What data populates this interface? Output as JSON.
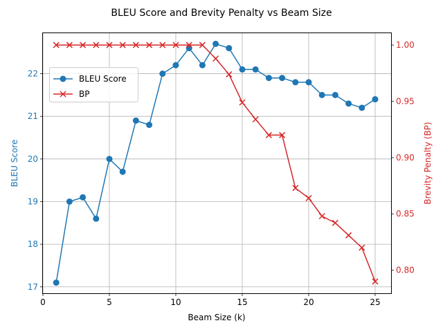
{
  "chart_data": {
    "type": "line",
    "title": "BLEU Score and Brevity Penalty vs Beam Size",
    "xlabel": "Beam Size (k)",
    "ylabel_left": "BLEU Score",
    "ylabel_right": "Brevity Penalty (BP)",
    "xlim": [
      0,
      26.2
    ],
    "ylim_left": [
      16.85,
      22.95
    ],
    "ylim_right": [
      0.7795,
      1.0105
    ],
    "x_ticks": [
      0,
      5,
      10,
      15,
      20,
      25
    ],
    "y_ticks_left": [
      17,
      18,
      19,
      20,
      21,
      22
    ],
    "y_ticks_right": [
      0.8,
      0.85,
      0.9,
      0.95,
      1.0
    ],
    "x_tick_labels": [
      "0",
      "5",
      "10",
      "15",
      "20",
      "25"
    ],
    "y_tick_labels_left": [
      "17",
      "18",
      "19",
      "20",
      "21",
      "22"
    ],
    "y_tick_labels_right": [
      "0.80",
      "0.85",
      "0.90",
      "0.95",
      "1.00"
    ],
    "grid": true,
    "legend_position": "upper-left",
    "x": [
      1,
      2,
      3,
      4,
      5,
      6,
      7,
      8,
      9,
      10,
      11,
      12,
      13,
      14,
      15,
      16,
      17,
      18,
      19,
      20,
      21,
      22,
      23,
      24,
      25
    ],
    "series": [
      {
        "name": "BLEU Score",
        "axis": "left",
        "color": "#1f77b4",
        "marker": "circle",
        "values": [
          17.1,
          19.0,
          19.1,
          18.6,
          20.0,
          19.7,
          20.9,
          20.8,
          22.0,
          22.2,
          22.6,
          22.2,
          22.7,
          22.6,
          22.1,
          22.1,
          21.9,
          21.9,
          21.8,
          21.8,
          21.5,
          21.5,
          21.3,
          21.2,
          21.4
        ]
      },
      {
        "name": "BP",
        "axis": "right",
        "color": "#d62728",
        "marker": "x",
        "values": [
          1.0,
          1.0,
          1.0,
          1.0,
          1.0,
          1.0,
          1.0,
          1.0,
          1.0,
          1.0,
          1.0,
          1.0,
          0.988,
          0.974,
          0.949,
          0.934,
          0.92,
          0.92,
          0.873,
          0.864,
          0.848,
          0.842,
          0.831,
          0.82,
          0.79
        ]
      }
    ]
  }
}
